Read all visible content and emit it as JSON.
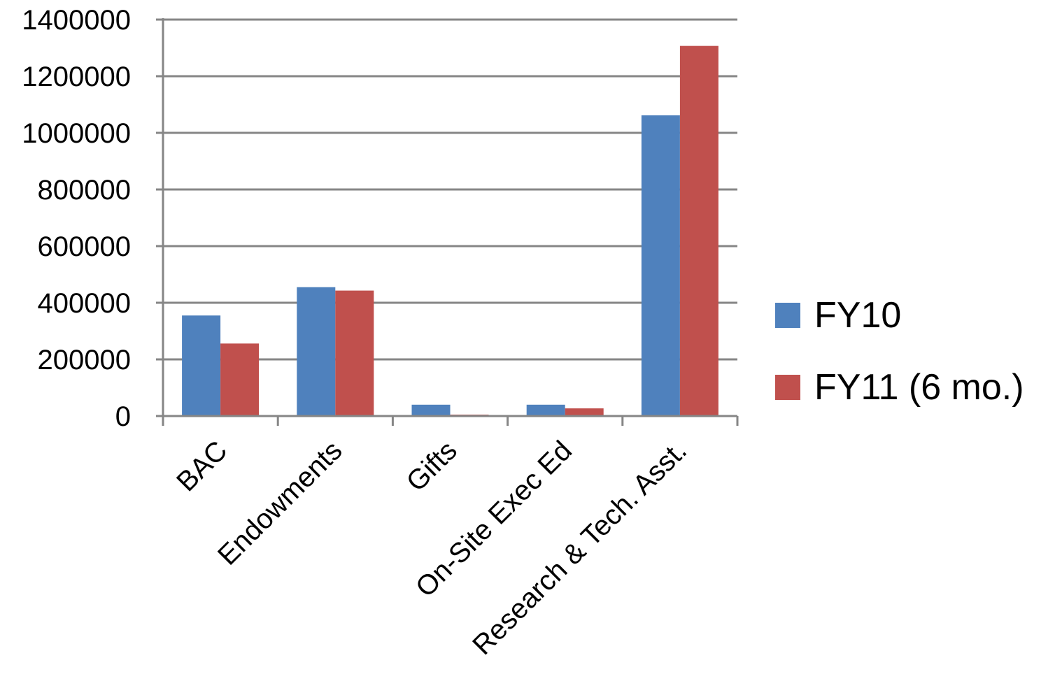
{
  "chart_data": {
    "type": "bar",
    "categories": [
      "BAC",
      "Endowments",
      "Gifts",
      "On-Site Exec Ed",
      "Research & Tech. Asst."
    ],
    "series": [
      {
        "name": "FY10",
        "color": "#4F81BD",
        "values": [
          355000,
          455000,
          40000,
          40000,
          1062000
        ]
      },
      {
        "name": "FY11 (6 mo.)",
        "color": "#C0504D",
        "values": [
          256000,
          443000,
          5000,
          27000,
          1307000
        ]
      }
    ],
    "y_ticks": [
      "0",
      "200000",
      "400000",
      "600000",
      "800000",
      "1000000",
      "1200000",
      "1400000"
    ],
    "ylim": [
      0,
      1400000
    ],
    "grid": true,
    "legend_position": "right"
  }
}
